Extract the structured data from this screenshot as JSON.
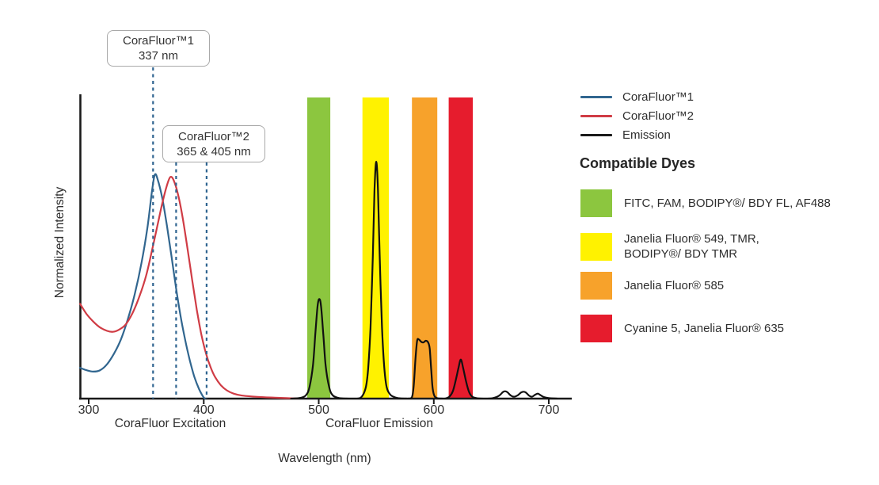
{
  "annotations": [
    {
      "title": "CoraFluor™1",
      "value": "337 nm"
    },
    {
      "title": "CoraFluor™2",
      "value": "365 & 405 nm"
    }
  ],
  "axes": {
    "y_label": "Normalized Intensity",
    "x_label": "Wavelength (nm)",
    "region_labels": [
      "CoraFluor Excitation",
      "CoraFluor Emission"
    ],
    "x_ticks": [
      300,
      400,
      500,
      600,
      700
    ]
  },
  "legend": {
    "items": [
      {
        "label": "CoraFluor™1",
        "color": "#31668f"
      },
      {
        "label": "CoraFluor™2",
        "color": "#d03c45"
      },
      {
        "label": "Emission",
        "color": "#1a1a1a"
      }
    ],
    "dyes_heading": "Compatible Dyes",
    "dyes": [
      {
        "slug": "green",
        "color": "#8cc63f",
        "lines": [
          "FITC, FAM, BODIPY®/ BDY FL, AF488"
        ]
      },
      {
        "slug": "yellow",
        "color": "#fff200",
        "lines": [
          "Janelia Fluor® 549, TMR,",
          "BODIPY®/ BDY TMR"
        ]
      },
      {
        "slug": "orange",
        "color": "#f7a22b",
        "lines": [
          "Janelia Fluor® 585"
        ]
      },
      {
        "slug": "red",
        "color": "#e61c2d",
        "lines": [
          "Cyanine 5, Janelia Fluor® 635"
        ]
      }
    ]
  },
  "chart_data": {
    "type": "line",
    "title": "",
    "xlabel": "Wavelength (nm)",
    "ylabel": "Normalized Intensity",
    "x_range": [
      292,
      720
    ],
    "x_ticks": [
      300,
      400,
      500,
      600,
      700
    ],
    "y_range": [
      0,
      1
    ],
    "grid": false,
    "legend_position": "right",
    "series": [
      {
        "name": "CoraFluor™1",
        "color": "#31668f",
        "style": "solid",
        "points": [
          [
            292.5,
            0.13
          ],
          [
            298,
            0.12
          ],
          [
            304,
            0.114
          ],
          [
            310,
            0.12
          ],
          [
            316,
            0.145
          ],
          [
            322,
            0.19
          ],
          [
            328,
            0.25
          ],
          [
            334,
            0.335
          ],
          [
            340,
            0.44
          ],
          [
            346,
            0.575
          ],
          [
            351,
            0.72
          ],
          [
            355,
            0.875
          ],
          [
            357.5,
            0.945
          ],
          [
            360,
            0.925
          ],
          [
            364,
            0.845
          ],
          [
            368,
            0.73
          ],
          [
            372,
            0.6
          ],
          [
            376,
            0.465
          ],
          [
            380,
            0.345
          ],
          [
            384,
            0.245
          ],
          [
            388,
            0.16
          ],
          [
            392,
            0.09
          ],
          [
            396,
            0.04
          ],
          [
            399,
            0.012
          ],
          [
            401,
            0
          ]
        ]
      },
      {
        "name": "CoraFluor™2",
        "color": "#d03c45",
        "style": "solid",
        "points": [
          [
            292.5,
            0.4
          ],
          [
            298,
            0.358
          ],
          [
            304,
            0.325
          ],
          [
            310,
            0.3
          ],
          [
            316,
            0.286
          ],
          [
            321,
            0.282
          ],
          [
            326,
            0.29
          ],
          [
            332,
            0.312
          ],
          [
            338,
            0.36
          ],
          [
            344,
            0.43
          ],
          [
            350,
            0.52
          ],
          [
            355,
            0.625
          ],
          [
            360,
            0.735
          ],
          [
            364,
            0.825
          ],
          [
            368,
            0.9
          ],
          [
            371,
            0.935
          ],
          [
            374,
            0.92
          ],
          [
            378,
            0.855
          ],
          [
            382,
            0.755
          ],
          [
            386,
            0.63
          ],
          [
            390,
            0.5
          ],
          [
            394,
            0.375
          ],
          [
            398,
            0.27
          ],
          [
            402,
            0.19
          ],
          [
            406,
            0.132
          ],
          [
            410,
            0.09
          ],
          [
            415,
            0.056
          ],
          [
            420,
            0.035
          ],
          [
            426,
            0.021
          ],
          [
            433,
            0.013
          ],
          [
            442,
            0.009
          ],
          [
            452,
            0.006
          ],
          [
            462,
            0.004
          ],
          [
            472,
            0.002
          ],
          [
            482,
            0
          ]
        ]
      },
      {
        "name": "Emission",
        "color": "#111111",
        "style": "solid",
        "points": [
          [
            476,
            0
          ],
          [
            484,
            0.003
          ],
          [
            489,
            0.015
          ],
          [
            492,
            0.05
          ],
          [
            495,
            0.14
          ],
          [
            497,
            0.27
          ],
          [
            499,
            0.39
          ],
          [
            500.5,
            0.42
          ],
          [
            502,
            0.39
          ],
          [
            504,
            0.27
          ],
          [
            506,
            0.14
          ],
          [
            509,
            0.05
          ],
          [
            512,
            0.015
          ],
          [
            517,
            0.003
          ],
          [
            524,
            0
          ],
          [
            534,
            0
          ],
          [
            538,
            0.012
          ],
          [
            541,
            0.05
          ],
          [
            543,
            0.13
          ],
          [
            545,
            0.3
          ],
          [
            547,
            0.6
          ],
          [
            548.5,
            0.88
          ],
          [
            550,
            1.0
          ],
          [
            551.5,
            0.88
          ],
          [
            553,
            0.6
          ],
          [
            555,
            0.3
          ],
          [
            557,
            0.13
          ],
          [
            559,
            0.05
          ],
          [
            562,
            0.018
          ],
          [
            566,
            0.006
          ],
          [
            571,
            0.001
          ],
          [
            576,
            0
          ],
          [
            578,
            0
          ],
          [
            581,
            0.006
          ],
          [
            582.5,
            0.05
          ],
          [
            584,
            0.16
          ],
          [
            585.5,
            0.243
          ],
          [
            587,
            0.25
          ],
          [
            589,
            0.24
          ],
          [
            591,
            0.237
          ],
          [
            593,
            0.244
          ],
          [
            595,
            0.238
          ],
          [
            596.5,
            0.21
          ],
          [
            597.8,
            0.12
          ],
          [
            599,
            0.045
          ],
          [
            600.5,
            0.012
          ],
          [
            603,
            0.002
          ],
          [
            607,
            0
          ],
          [
            610,
            0
          ],
          [
            613.5,
            0.008
          ],
          [
            616.5,
            0.03
          ],
          [
            619,
            0.075
          ],
          [
            621.5,
            0.13
          ],
          [
            623.5,
            0.165
          ],
          [
            625.5,
            0.13
          ],
          [
            628,
            0.075
          ],
          [
            630.5,
            0.03
          ],
          [
            633,
            0.01
          ],
          [
            636,
            0.003
          ],
          [
            641,
            0
          ],
          [
            648,
            0
          ],
          [
            653,
            0.004
          ],
          [
            657,
            0.013
          ],
          [
            660,
            0.027
          ],
          [
            662,
            0.031
          ],
          [
            664,
            0.027
          ],
          [
            667,
            0.013
          ],
          [
            670,
            0.008
          ],
          [
            673,
            0.014
          ],
          [
            676,
            0.026
          ],
          [
            678,
            0.029
          ],
          [
            680,
            0.026
          ],
          [
            683,
            0.012
          ],
          [
            685.5,
            0.008
          ],
          [
            688,
            0.016
          ],
          [
            690.5,
            0.021
          ],
          [
            693,
            0.014
          ],
          [
            696,
            0.006
          ],
          [
            700,
            0.002
          ],
          [
            707,
            0
          ]
        ]
      }
    ],
    "bands": [
      {
        "slug": "green",
        "color": "#8cc63f",
        "from_nm": 490,
        "to_nm": 510,
        "dyes": "FITC, FAM, BODIPY®/ BDY FL, AF488"
      },
      {
        "slug": "yellow",
        "color": "#fff200",
        "from_nm": 538,
        "to_nm": 561,
        "dyes": "Janelia Fluor® 549, TMR, BODIPY®/ BDY TMR"
      },
      {
        "slug": "orange",
        "color": "#f7a22b",
        "from_nm": 581,
        "to_nm": 603,
        "dyes": "Janelia Fluor® 585"
      },
      {
        "slug": "red",
        "color": "#e61c2d",
        "from_nm": 613,
        "to_nm": 634,
        "dyes": "Cyanine 5, Janelia Fluor® 635"
      }
    ],
    "dashed_markers": {
      "color": "#2f6490",
      "labeled_nm": [
        337,
        365,
        405
      ],
      "drawn_nm": [
        356,
        376,
        402.5
      ]
    },
    "emission_peaks_nm": [
      500,
      550,
      589,
      623,
      662,
      678,
      690
    ]
  }
}
